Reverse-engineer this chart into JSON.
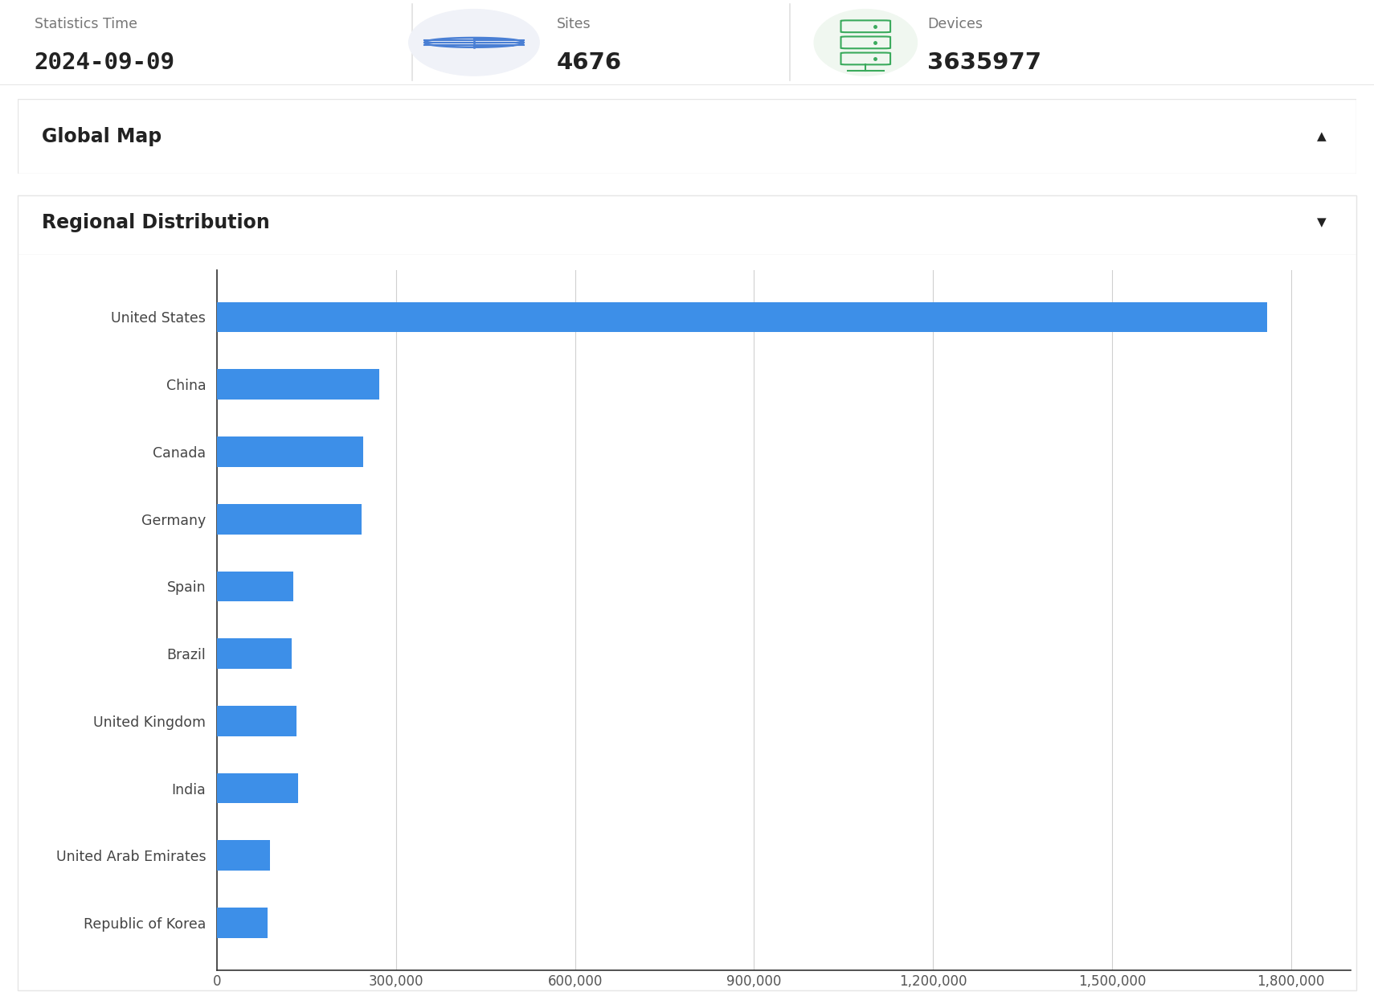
{
  "stats_time": "2024-09-09",
  "sites": "4676",
  "devices": "3635977",
  "section1_title": "Global Map",
  "section2_title": "Regional Distribution",
  "categories": [
    "United States",
    "China",
    "Canada",
    "Germany",
    "Spain",
    "Brazil",
    "United Kingdom",
    "India",
    "United Arab Emirates",
    "Republic of Korea"
  ],
  "values": [
    1760000,
    272000,
    245000,
    242000,
    128000,
    125000,
    133000,
    136000,
    88000,
    85000
  ],
  "bar_color": "#3d8fe8",
  "bg_color": "#ffffff",
  "grid_color": "#d0d0d0",
  "label_color": "#444444",
  "tick_color": "#555555",
  "title_color": "#222222",
  "stats_label_color": "#777777",
  "stats_value_color": "#222222",
  "divider_color": "#e0e0e0",
  "border_color": "#e5e5e5",
  "globe_circle_color": "#f0f2f8",
  "globe_icon_color": "#4a7fd4",
  "server_circle_color": "#f0f7f0",
  "server_icon_color": "#3aaa5c",
  "xmax": 1900000,
  "xtick_values": [
    0,
    300000,
    600000,
    900000,
    1200000,
    1500000,
    1800000
  ],
  "bar_height": 0.45,
  "figsize": [
    17.1,
    12.44
  ],
  "dpi": 100
}
